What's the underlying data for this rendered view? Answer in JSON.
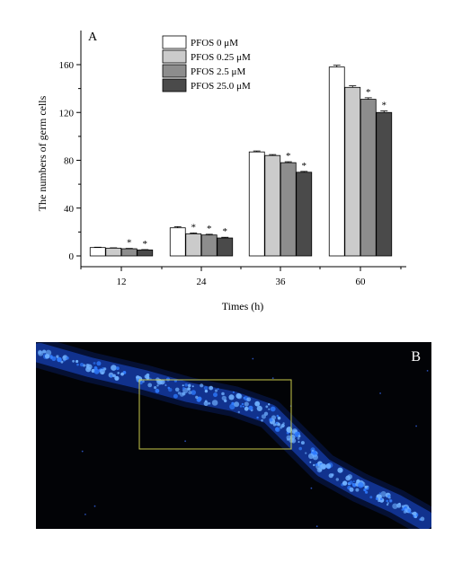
{
  "chart_data": {
    "type": "bar",
    "panel_label": "A",
    "xlabel": "Times (h)",
    "ylabel": "The numbers of germ cells",
    "categories": [
      "12",
      "24",
      "36",
      "60"
    ],
    "yticks": [
      "0",
      "40",
      "80",
      "120",
      "160"
    ],
    "ylim": [
      0,
      175
    ],
    "legend_position": "top-center",
    "series": [
      {
        "name": "PFOS 0 μM",
        "color": "#ffffff",
        "values": [
          7,
          23.5,
          87,
          158
        ],
        "errors": [
          0.3,
          1.0,
          0.8,
          1.5
        ],
        "sig": [
          false,
          false,
          false,
          false
        ]
      },
      {
        "name": "PFOS 0.25 μM",
        "color": "#cbcbcb",
        "values": [
          6.5,
          18.5,
          84,
          141
        ],
        "errors": [
          0.3,
          0.7,
          0.8,
          1.3
        ],
        "sig": [
          false,
          true,
          false,
          false
        ]
      },
      {
        "name": "PFOS 2.5 μM",
        "color": "#8d8d8d",
        "values": [
          6,
          17.5,
          78,
          131
        ],
        "errors": [
          0.3,
          0.6,
          0.8,
          1.3
        ],
        "sig": [
          true,
          true,
          true,
          true
        ]
      },
      {
        "name": "PFOS 25.0 μM",
        "color": "#4a4a4a",
        "values": [
          5,
          15,
          70,
          120
        ],
        "errors": [
          0.3,
          0.6,
          0.7,
          1.3
        ],
        "sig": [
          true,
          true,
          true,
          true
        ]
      }
    ],
    "significance_marker": "*"
  },
  "panel_b": {
    "label": "B",
    "background_color": "#020306",
    "stain_color": "#2f7bff",
    "highlight_box_color": "#c8c84a"
  }
}
